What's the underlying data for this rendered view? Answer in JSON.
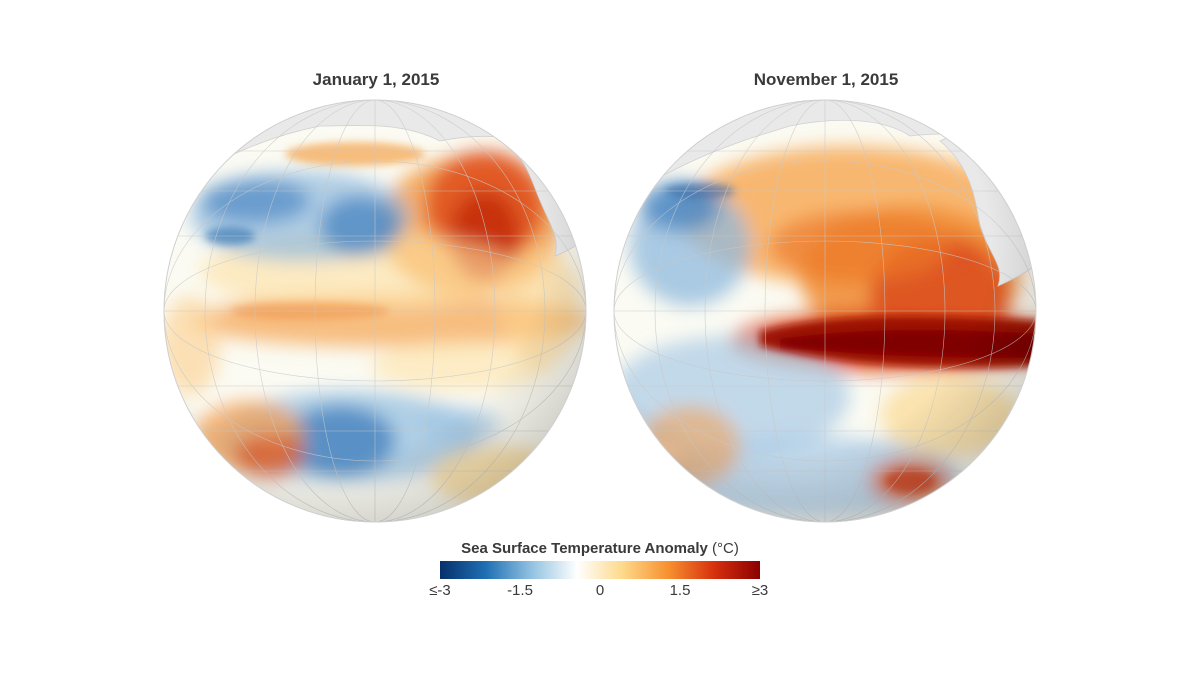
{
  "panels": [
    {
      "title": "January 1, 2015"
    },
    {
      "title": "November 1, 2015"
    }
  ],
  "legend": {
    "title": "Sea Surface Temperature Anomaly",
    "unit": "(°C)",
    "ticks": [
      "≤-3",
      "-1.5",
      "0",
      "1.5",
      "≥3"
    ],
    "range": [
      -3,
      3
    ],
    "colors": [
      "#08306b",
      "#1f6fb4",
      "#92c2e0",
      "#ffffff",
      "#fdd98a",
      "#f7902f",
      "#d6300e",
      "#8b0000"
    ]
  },
  "colors": {
    "land": "#e9e9e9",
    "graticule": "#c8c8c8",
    "ocean_neutral": "#fbfbf3"
  }
}
